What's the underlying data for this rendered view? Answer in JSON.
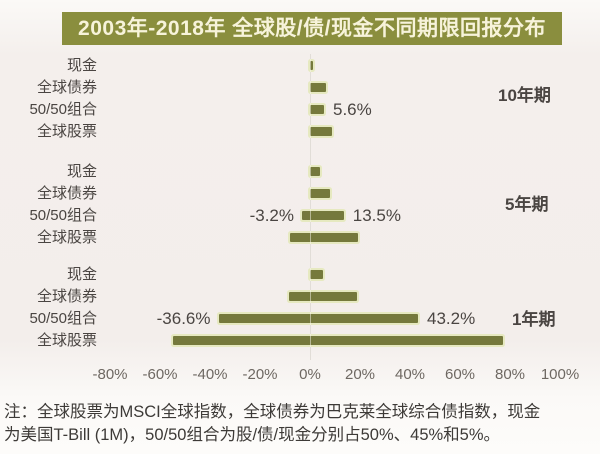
{
  "title": "2003年-2018年 全球股/债/现金不同期限回报分布",
  "note": {
    "line1": "注：全球股票为MSCI全球指数，全球债券为巴克莱全球综合债指数，现金",
    "line2": "为美国T-Bill (1M)，50/50组合为股/债/现金分别占50%、45%和5%。"
  },
  "colors": {
    "title_bg": "#8a8e3e",
    "title_text": "#f7f3da",
    "bar": "#75793c",
    "bar_halo": "#e6e9c0",
    "zero_line": "#c9c3c0",
    "label_text": "#4a4542",
    "tick_text": "#6e6862",
    "note_text": "#3d3a37"
  },
  "chart_data": {
    "type": "bar",
    "variant": "horizontal-floating-range",
    "title": "2003年-2018年 全球股/债/现金不同期限回报分布",
    "xlabel": "",
    "ylabel": "",
    "unit": "%",
    "xlim": [
      -92,
      104
    ],
    "grid": false,
    "legend": false,
    "x_tick_values": [
      -80,
      -60,
      -40,
      -20,
      0,
      20,
      40,
      60,
      80,
      100
    ],
    "x_tick_labels": [
      "-80%",
      "-60%",
      "-40%",
      "-20%",
      "0%",
      "20%",
      "40%",
      "60%",
      "80%",
      "100%"
    ],
    "groups": [
      {
        "period": "10年期",
        "rows": [
          {
            "label": "现金",
            "min": 0,
            "max": 0.8
          },
          {
            "label": "全球债券",
            "min": 0,
            "max": 6.3
          },
          {
            "label": "50/50组合",
            "min": 0,
            "max": 5.6,
            "max_label": "5.6%"
          },
          {
            "label": "全球股票",
            "min": 0,
            "max": 8.8
          }
        ]
      },
      {
        "period": "5年期",
        "rows": [
          {
            "label": "现金",
            "min": 0,
            "max": 3.9
          },
          {
            "label": "全球债券",
            "min": 0,
            "max": 7.9
          },
          {
            "label": "50/50组合",
            "min": -3.2,
            "max": 13.5,
            "min_label": "-3.2%",
            "max_label": "13.5%"
          },
          {
            "label": "全球股票",
            "min": -7.9,
            "max": 19.3
          }
        ]
      },
      {
        "period": "1年期",
        "rows": [
          {
            "label": "现金",
            "min": 0,
            "max": 5.2
          },
          {
            "label": "全球债券",
            "min": -8.5,
            "max": 18.8
          },
          {
            "label": "50/50组合",
            "min": -36.6,
            "max": 43.2,
            "min_label": "-36.6%",
            "max_label": "43.2%"
          },
          {
            "label": "全球股票",
            "min": -55,
            "max": 77
          }
        ]
      }
    ]
  }
}
